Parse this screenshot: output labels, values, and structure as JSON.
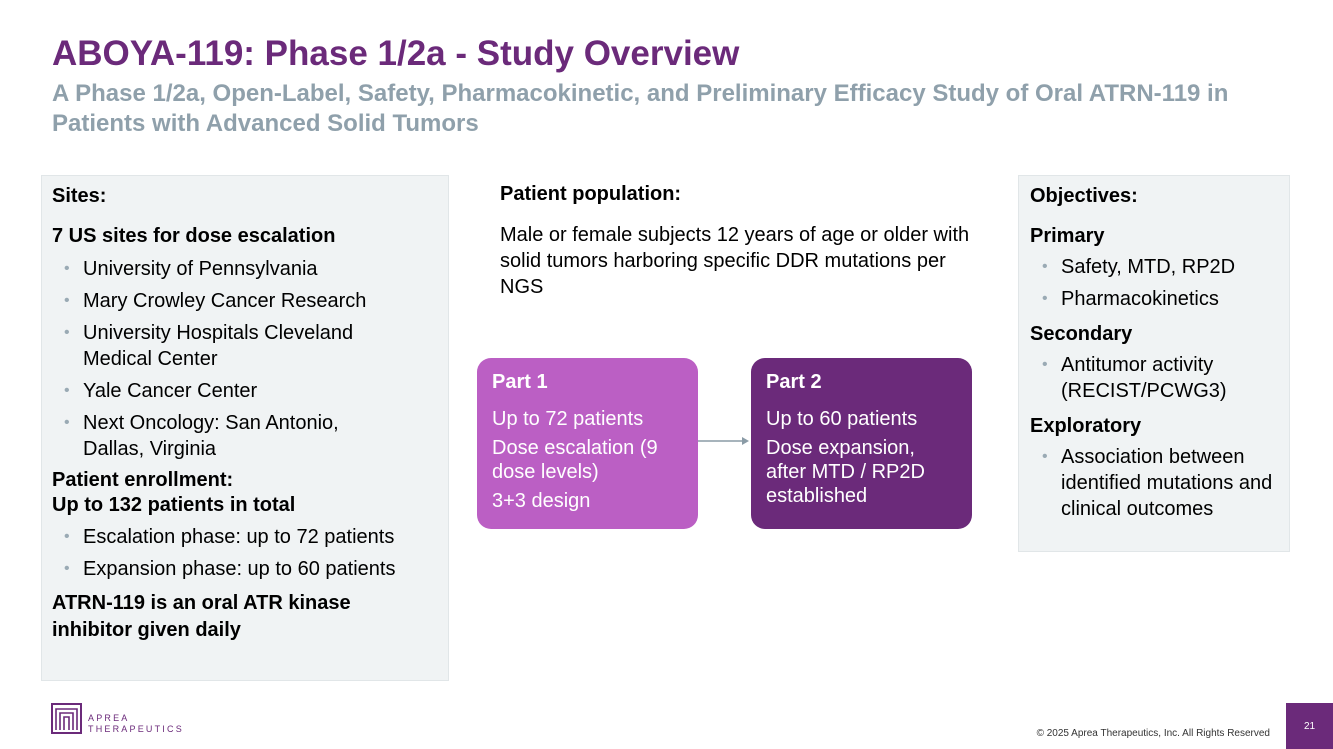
{
  "title": "ABOYA-119: Phase 1/2a - Study Overview",
  "subtitle": "A Phase 1/2a, Open-Label, Safety, Pharmacokinetic, and Preliminary Efficacy Study of Oral ATRN-119 in Patients with Advanced Solid Tumors",
  "sites": {
    "heading": "Sites:",
    "escalation_heading": "7 US sites for dose escalation",
    "items": [
      "University of Pennsylvania",
      "Mary Crowley Cancer Research",
      "University Hospitals Cleveland Medical Center",
      "Yale Cancer Center",
      "Next Oncology: San Antonio, Dallas, Virginia"
    ],
    "enrollment_heading": "Patient enrollment:",
    "enrollment_total": "Up to 132 patients in total",
    "enrollment_items": [
      "Escalation phase: up to 72 patients",
      "Expansion phase: up to 60 patients"
    ],
    "drug_note": "ATRN-119 is an oral ATR kinase inhibitor given daily"
  },
  "population": {
    "heading": "Patient population:",
    "text": "Male or female subjects 12 years of age or older with solid tumors harboring specific DDR mutations per NGS"
  },
  "part1": {
    "title": "Part 1",
    "line1": "Up to 72 patients",
    "line2": "Dose escalation (9 dose levels)",
    "line3": "3+3 design"
  },
  "part2": {
    "title": "Part 2",
    "line1": "Up to 60 patients",
    "line2": "Dose expansion, after MTD / RP2D established"
  },
  "objectives": {
    "heading": "Objectives:",
    "primary_heading": "Primary",
    "primary_items": [
      "Safety, MTD, RP2D",
      "Pharmacokinetics"
    ],
    "secondary_heading": "Secondary",
    "secondary_items": [
      "Antitumor activity (RECIST/PCWG3)"
    ],
    "exploratory_heading": "Exploratory",
    "exploratory_items": [
      "Association between identified mutations and clinical outcomes"
    ]
  },
  "footer": {
    "logo_line1": "APREA",
    "logo_line2": "THERAPEUTICS",
    "copyright": "© 2025 Aprea Therapeutics, Inc. All Rights Reserved",
    "page_number": "21"
  },
  "colors": {
    "brand_purple": "#6b2a7a",
    "light_purple": "#bb5fc4",
    "subtitle_gray": "#8fa0ab",
    "panel_bg": "#f0f3f4"
  }
}
